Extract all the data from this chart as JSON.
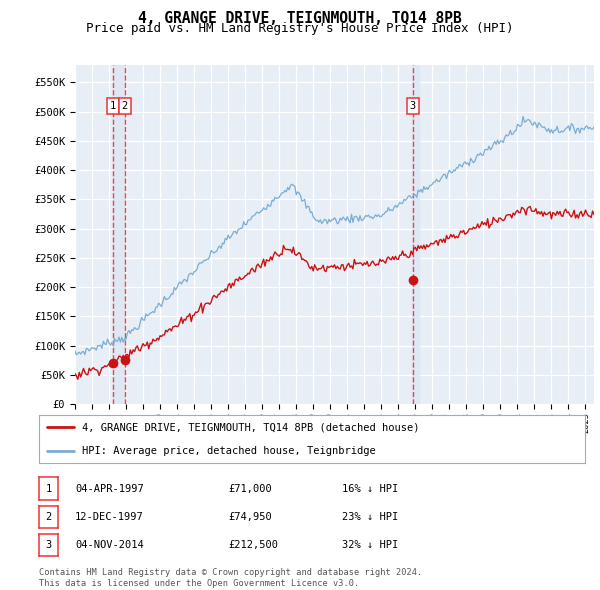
{
  "title": "4, GRANGE DRIVE, TEIGNMOUTH, TQ14 8PB",
  "subtitle": "Price paid vs. HM Land Registry's House Price Index (HPI)",
  "ylim": [
    0,
    580000
  ],
  "yticks": [
    0,
    50000,
    100000,
    150000,
    200000,
    250000,
    300000,
    350000,
    400000,
    450000,
    500000,
    550000
  ],
  "ytick_labels": [
    "£0",
    "£50K",
    "£100K",
    "£150K",
    "£200K",
    "£250K",
    "£300K",
    "£350K",
    "£400K",
    "£450K",
    "£500K",
    "£550K"
  ],
  "vline1_year": 1997.25,
  "vline2_year": 1997.92,
  "vline3_year": 2014.84,
  "marker1_x": 1997.25,
  "marker1_y": 71000,
  "marker2_x": 1997.92,
  "marker2_y": 74950,
  "marker3_x": 2014.84,
  "marker3_y": 212500,
  "legend_line1": "4, GRANGE DRIVE, TEIGNMOUTH, TQ14 8PB (detached house)",
  "legend_line2": "HPI: Average price, detached house, Teignbridge",
  "table_rows": [
    [
      "1",
      "04-APR-1997",
      "£71,000",
      "16% ↓ HPI"
    ],
    [
      "2",
      "12-DEC-1997",
      "£74,950",
      "23% ↓ HPI"
    ],
    [
      "3",
      "04-NOV-2014",
      "£212,500",
      "32% ↓ HPI"
    ]
  ],
  "footer": "Contains HM Land Registry data © Crown copyright and database right 2024.\nThis data is licensed under the Open Government Licence v3.0.",
  "hpi_color": "#7aadd4",
  "price_color": "#cc1111",
  "vline_color": "#ee3333",
  "span_color": "#dde8f5",
  "bg_color": "#e8eef6",
  "grid_color": "#ffffff",
  "title_fontsize": 10.5,
  "subtitle_fontsize": 9,
  "xmin": 1995.0,
  "xmax": 2025.5
}
